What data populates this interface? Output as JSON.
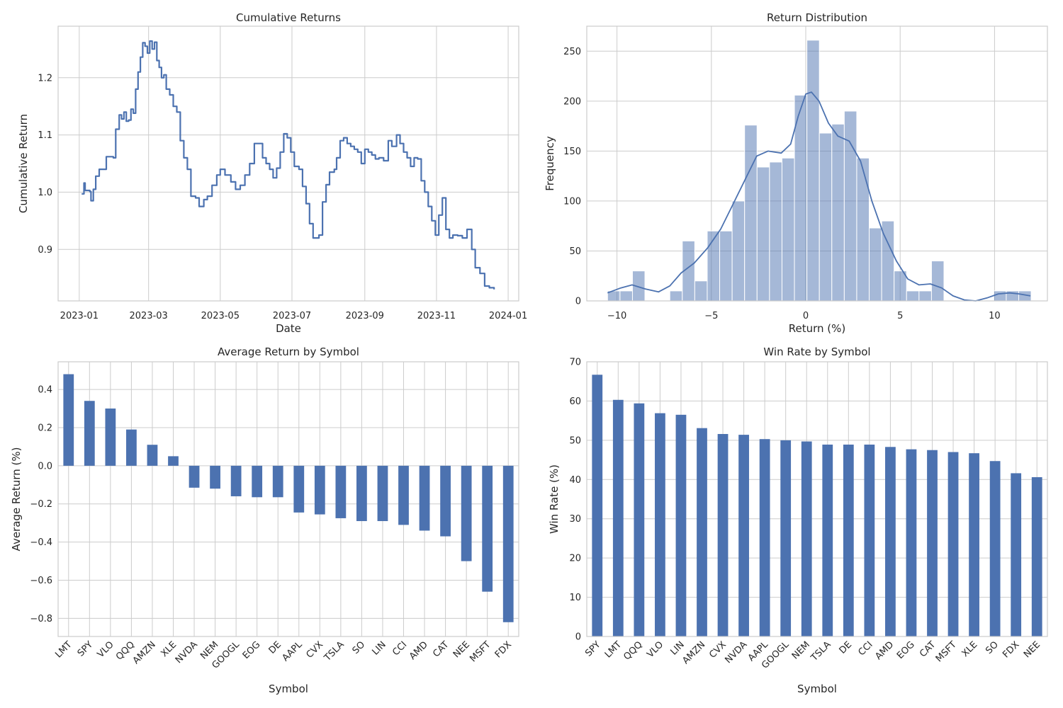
{
  "chart_data": [
    {
      "type": "line",
      "title": "Cumulative Returns",
      "xlabel": "Date",
      "ylabel": "Cumulative Return",
      "x_tick_labels": [
        "2023-01",
        "2023-03",
        "2023-05",
        "2023-07",
        "2023-09",
        "2023-11",
        "2024-01"
      ],
      "y_tick_labels": [
        "0.9",
        "1.0",
        "1.1",
        "1.2"
      ],
      "xlim": [
        "2022-12-14",
        "2024-01-10"
      ],
      "ylim": [
        0.81,
        1.29
      ],
      "grid": true,
      "color": "#4c72b0",
      "points": [
        [
          "2023-01-03",
          0.997
        ],
        [
          "2023-01-05",
          1.016
        ],
        [
          "2023-01-06",
          1.003
        ],
        [
          "2023-01-10",
          1.001
        ],
        [
          "2023-01-11",
          0.985
        ],
        [
          "2023-01-13",
          1.005
        ],
        [
          "2023-01-15",
          1.028
        ],
        [
          "2023-01-18",
          1.04
        ],
        [
          "2023-01-22",
          1.04
        ],
        [
          "2023-01-24",
          1.062
        ],
        [
          "2023-01-30",
          1.06
        ],
        [
          "2023-02-01",
          1.11
        ],
        [
          "2023-02-04",
          1.135
        ],
        [
          "2023-02-06",
          1.128
        ],
        [
          "2023-02-08",
          1.14
        ],
        [
          "2023-02-10",
          1.124
        ],
        [
          "2023-02-12",
          1.126
        ],
        [
          "2023-02-14",
          1.145
        ],
        [
          "2023-02-16",
          1.138
        ],
        [
          "2023-02-18",
          1.18
        ],
        [
          "2023-02-20",
          1.21
        ],
        [
          "2023-02-22",
          1.236
        ],
        [
          "2023-02-24",
          1.261
        ],
        [
          "2023-02-26",
          1.255
        ],
        [
          "2023-02-28",
          1.243
        ],
        [
          "2023-03-02",
          1.264
        ],
        [
          "2023-03-04",
          1.25
        ],
        [
          "2023-03-06",
          1.262
        ],
        [
          "2023-03-08",
          1.23
        ],
        [
          "2023-03-10",
          1.218
        ],
        [
          "2023-03-12",
          1.2
        ],
        [
          "2023-03-14",
          1.205
        ],
        [
          "2023-03-16",
          1.18
        ],
        [
          "2023-03-19",
          1.17
        ],
        [
          "2023-03-22",
          1.15
        ],
        [
          "2023-03-25",
          1.14
        ],
        [
          "2023-03-28",
          1.09
        ],
        [
          "2023-03-31",
          1.06
        ],
        [
          "2023-04-03",
          1.04
        ],
        [
          "2023-04-06",
          0.993
        ],
        [
          "2023-04-10",
          0.99
        ],
        [
          "2023-04-13",
          0.975
        ],
        [
          "2023-04-17",
          0.987
        ],
        [
          "2023-04-20",
          0.993
        ],
        [
          "2023-04-24",
          1.012
        ],
        [
          "2023-04-28",
          1.03
        ],
        [
          "2023-05-01",
          1.04
        ],
        [
          "2023-05-05",
          1.03
        ],
        [
          "2023-05-10",
          1.018
        ],
        [
          "2023-05-14",
          1.005
        ],
        [
          "2023-05-18",
          1.012
        ],
        [
          "2023-05-22",
          1.03
        ],
        [
          "2023-05-26",
          1.05
        ],
        [
          "2023-05-30",
          1.085
        ],
        [
          "2023-06-03",
          1.085
        ],
        [
          "2023-06-06",
          1.06
        ],
        [
          "2023-06-09",
          1.05
        ],
        [
          "2023-06-12",
          1.04
        ],
        [
          "2023-06-15",
          1.025
        ],
        [
          "2023-06-18",
          1.042
        ],
        [
          "2023-06-21",
          1.07
        ],
        [
          "2023-06-24",
          1.102
        ],
        [
          "2023-06-27",
          1.095
        ],
        [
          "2023-06-30",
          1.07
        ],
        [
          "2023-07-03",
          1.045
        ],
        [
          "2023-07-07",
          1.04
        ],
        [
          "2023-07-10",
          1.01
        ],
        [
          "2023-07-13",
          0.98
        ],
        [
          "2023-07-16",
          0.945
        ],
        [
          "2023-07-19",
          0.92
        ],
        [
          "2023-07-24",
          0.925
        ],
        [
          "2023-07-27",
          0.983
        ],
        [
          "2023-07-30",
          1.013
        ],
        [
          "2023-08-02",
          1.035
        ],
        [
          "2023-08-06",
          1.04
        ],
        [
          "2023-08-08",
          1.06
        ],
        [
          "2023-08-11",
          1.09
        ],
        [
          "2023-08-14",
          1.095
        ],
        [
          "2023-08-17",
          1.085
        ],
        [
          "2023-08-20",
          1.08
        ],
        [
          "2023-08-23",
          1.075
        ],
        [
          "2023-08-26",
          1.07
        ],
        [
          "2023-08-29",
          1.05
        ],
        [
          "2023-09-01",
          1.075
        ],
        [
          "2023-09-04",
          1.07
        ],
        [
          "2023-09-07",
          1.065
        ],
        [
          "2023-09-10",
          1.058
        ],
        [
          "2023-09-13",
          1.06
        ],
        [
          "2023-09-17",
          1.055
        ],
        [
          "2023-09-21",
          1.09
        ],
        [
          "2023-09-24",
          1.08
        ],
        [
          "2023-09-28",
          1.1
        ],
        [
          "2023-10-01",
          1.085
        ],
        [
          "2023-10-04",
          1.07
        ],
        [
          "2023-10-07",
          1.06
        ],
        [
          "2023-10-10",
          1.045
        ],
        [
          "2023-10-13",
          1.06
        ],
        [
          "2023-10-16",
          1.058
        ],
        [
          "2023-10-19",
          1.02
        ],
        [
          "2023-10-22",
          1.0
        ],
        [
          "2023-10-25",
          0.975
        ],
        [
          "2023-10-28",
          0.95
        ],
        [
          "2023-10-31",
          0.925
        ],
        [
          "2023-11-03",
          0.96
        ],
        [
          "2023-11-06",
          0.99
        ],
        [
          "2023-11-09",
          0.935
        ],
        [
          "2023-11-12",
          0.92
        ],
        [
          "2023-11-15",
          0.925
        ],
        [
          "2023-11-19",
          0.924
        ],
        [
          "2023-11-23",
          0.92
        ],
        [
          "2023-11-27",
          0.935
        ],
        [
          "2023-12-01",
          0.9
        ],
        [
          "2023-12-04",
          0.868
        ],
        [
          "2023-12-08",
          0.858
        ],
        [
          "2023-12-12",
          0.836
        ],
        [
          "2023-12-16",
          0.833
        ],
        [
          "2023-12-20",
          0.83
        ]
      ]
    },
    {
      "type": "histogram",
      "title": "Return Distribution",
      "xlabel": "Return (%)",
      "ylabel": "Frequency",
      "x_tick_labels": [
        "−10",
        "−5",
        "0",
        "5",
        "10"
      ],
      "y_tick_labels": [
        "0",
        "50",
        "100",
        "150",
        "200",
        "250"
      ],
      "xlim": [
        -11.6,
        12.8
      ],
      "ylim": [
        0,
        275
      ],
      "grid": true,
      "color": "#4c72b0",
      "bins": [
        {
          "x0": -10.5,
          "x1": -9.84,
          "count": 10
        },
        {
          "x0": -9.84,
          "x1": -9.18,
          "count": 10
        },
        {
          "x0": -9.18,
          "x1": -8.52,
          "count": 30
        },
        {
          "x0": -7.2,
          "x1": -6.54,
          "count": 10
        },
        {
          "x0": -6.54,
          "x1": -5.88,
          "count": 60
        },
        {
          "x0": -5.88,
          "x1": -5.22,
          "count": 20
        },
        {
          "x0": -5.22,
          "x1": -4.56,
          "count": 70
        },
        {
          "x0": -4.56,
          "x1": -3.9,
          "count": 70
        },
        {
          "x0": -3.9,
          "x1": -3.24,
          "count": 100
        },
        {
          "x0": -3.24,
          "x1": -2.58,
          "count": 176
        },
        {
          "x0": -2.58,
          "x1": -1.92,
          "count": 134
        },
        {
          "x0": -1.92,
          "x1": -1.26,
          "count": 139
        },
        {
          "x0": -1.26,
          "x1": -0.6,
          "count": 143
        },
        {
          "x0": -0.6,
          "x1": 0.06,
          "count": 206
        },
        {
          "x0": 0.06,
          "x1": 0.72,
          "count": 261
        },
        {
          "x0": 0.72,
          "x1": 1.38,
          "count": 168
        },
        {
          "x0": 1.38,
          "x1": 2.04,
          "count": 177
        },
        {
          "x0": 2.04,
          "x1": 2.7,
          "count": 190
        },
        {
          "x0": 2.7,
          "x1": 3.36,
          "count": 143
        },
        {
          "x0": 3.36,
          "x1": 4.02,
          "count": 73
        },
        {
          "x0": 4.02,
          "x1": 4.68,
          "count": 80
        },
        {
          "x0": 4.68,
          "x1": 5.34,
          "count": 30
        },
        {
          "x0": 5.34,
          "x1": 6.0,
          "count": 10
        },
        {
          "x0": 6.0,
          "x1": 6.66,
          "count": 10
        },
        {
          "x0": 6.66,
          "x1": 7.32,
          "count": 40
        },
        {
          "x0": 9.96,
          "x1": 10.62,
          "count": 10
        },
        {
          "x0": 10.62,
          "x1": 11.28,
          "count": 10
        },
        {
          "x0": 11.28,
          "x1": 11.94,
          "count": 10
        }
      ],
      "kde": [
        [
          -10.5,
          8
        ],
        [
          -9.8,
          13
        ],
        [
          -9.2,
          16
        ],
        [
          -8.5,
          12
        ],
        [
          -7.8,
          9
        ],
        [
          -7.2,
          15
        ],
        [
          -6.6,
          28
        ],
        [
          -5.9,
          38
        ],
        [
          -5.2,
          53
        ],
        [
          -4.5,
          72
        ],
        [
          -3.9,
          95
        ],
        [
          -3.2,
          122
        ],
        [
          -2.6,
          145
        ],
        [
          -2.0,
          150
        ],
        [
          -1.3,
          148
        ],
        [
          -0.8,
          157
        ],
        [
          -0.4,
          185
        ],
        [
          0.0,
          207
        ],
        [
          0.3,
          209
        ],
        [
          0.7,
          200
        ],
        [
          1.2,
          178
        ],
        [
          1.7,
          165
        ],
        [
          2.3,
          160
        ],
        [
          2.9,
          140
        ],
        [
          3.5,
          100
        ],
        [
          4.1,
          68
        ],
        [
          4.8,
          40
        ],
        [
          5.4,
          22
        ],
        [
          6.0,
          16
        ],
        [
          6.6,
          17
        ],
        [
          7.2,
          13
        ],
        [
          7.8,
          5
        ],
        [
          8.4,
          1
        ],
        [
          9.0,
          0
        ],
        [
          9.6,
          3
        ],
        [
          10.2,
          7
        ],
        [
          10.8,
          8
        ],
        [
          11.3,
          7
        ],
        [
          11.9,
          5
        ]
      ]
    },
    {
      "type": "bar",
      "title": "Average Return by Symbol",
      "xlabel": "Symbol",
      "ylabel": "Average Return (%)",
      "categories": [
        "LMT",
        "SPY",
        "VLO",
        "QQQ",
        "AMZN",
        "XLE",
        "NVDA",
        "NEM",
        "GOOGL",
        "EOG",
        "DE",
        "AAPL",
        "CVX",
        "TSLA",
        "SO",
        "LIN",
        "CCI",
        "AMD",
        "CAT",
        "NEE",
        "MSFT",
        "FDX"
      ],
      "values": [
        0.48,
        0.34,
        0.3,
        0.19,
        0.11,
        0.05,
        -0.115,
        -0.12,
        -0.16,
        -0.165,
        -0.165,
        -0.245,
        -0.255,
        -0.275,
        -0.29,
        -0.29,
        -0.31,
        -0.34,
        -0.37,
        -0.5,
        -0.66,
        -0.82
      ],
      "y_tick_labels": [
        "−0.8",
        "−0.6",
        "−0.4",
        "−0.2",
        "0.0",
        "0.2",
        "0.4"
      ],
      "ylim": [
        -0.895,
        0.545
      ],
      "grid": true,
      "color": "#4c72b0"
    },
    {
      "type": "bar",
      "title": "Win Rate by Symbol",
      "xlabel": "Symbol",
      "ylabel": "Win Rate (%)",
      "categories": [
        "SPY",
        "LMT",
        "QQQ",
        "VLO",
        "LIN",
        "AMZN",
        "CVX",
        "NVDA",
        "AAPL",
        "GOOGL",
        "NEM",
        "TSLA",
        "DE",
        "CCI",
        "AMD",
        "EOG",
        "CAT",
        "MSFT",
        "XLE",
        "SO",
        "FDX",
        "NEE"
      ],
      "values": [
        66.7,
        60.3,
        59.4,
        56.9,
        56.5,
        53.1,
        51.6,
        51.4,
        50.3,
        50.0,
        49.7,
        48.9,
        48.9,
        48.9,
        48.3,
        47.7,
        47.5,
        47.0,
        46.7,
        44.7,
        41.6,
        40.6
      ],
      "y_tick_labels": [
        "0",
        "10",
        "20",
        "30",
        "40",
        "50",
        "60",
        "70"
      ],
      "ylim": [
        0,
        70
      ],
      "grid": true,
      "color": "#4c72b0"
    }
  ]
}
